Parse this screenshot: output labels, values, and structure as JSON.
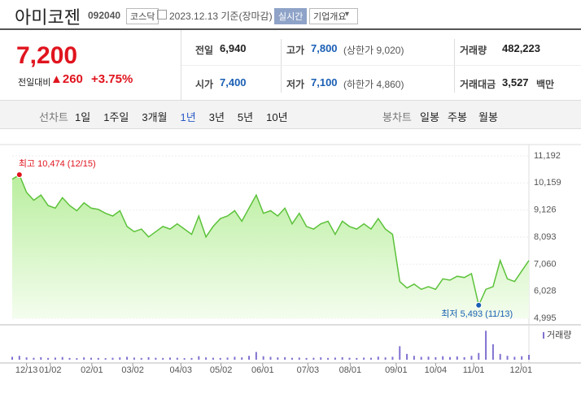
{
  "header": {
    "name": "아미코젠",
    "code": "092040",
    "market": "코스닥",
    "date": "2023.12.13 기준(장마감)",
    "realtime": "실시간",
    "company_info": "기업개요"
  },
  "quote": {
    "price": "7,200",
    "change_label": "전일대비",
    "change": "▲260",
    "change_pct": "+3.75%"
  },
  "stats": [
    {
      "label": "전일",
      "value": "6,940"
    },
    {
      "label": "고가",
      "value": "7,800",
      "extra": "(상한가 9,020)"
    },
    {
      "label": "거래량",
      "value": "482,223"
    },
    {
      "label": "시가",
      "value": "7,400"
    },
    {
      "label": "저가",
      "value": "7,100",
      "extra": "(하한가 4,860)"
    },
    {
      "label": "거래대금",
      "value": "3,527",
      "unit": "백만"
    }
  ],
  "line_chart_tabs": {
    "label": "선차트",
    "items": [
      "1일",
      "1주일",
      "3개월",
      "1년",
      "3년",
      "5년",
      "10년"
    ],
    "selected": 3
  },
  "candle_chart_tabs": {
    "label": "봉차트",
    "items": [
      "일봉",
      "주봉",
      "월봉"
    ]
  },
  "chart_data": {
    "type": "line",
    "color": "#5cc23a",
    "values": [
      10300,
      10474,
      9800,
      9500,
      9700,
      9300,
      9200,
      9600,
      9300,
      9100,
      9400,
      9200,
      9150,
      9000,
      8900,
      9100,
      8500,
      8300,
      8400,
      8100,
      8300,
      8500,
      8400,
      8600,
      8400,
      8200,
      8900,
      8100,
      8500,
      8800,
      8900,
      9100,
      8700,
      9200,
      9700,
      9000,
      9100,
      8900,
      9200,
      8600,
      9000,
      8500,
      8400,
      8600,
      8700,
      8200,
      8700,
      8500,
      8400,
      8600,
      8400,
      8800,
      8400,
      8200,
      6400,
      6150,
      6300,
      6100,
      6200,
      6100,
      6500,
      6450,
      6600,
      6550,
      6700,
      5493,
      6100,
      6200,
      7200,
      6500,
      6400,
      6800,
      7200
    ],
    "xlim": [
      0,
      72
    ],
    "xticks": [
      {
        "value": 2,
        "label": "12/13"
      },
      {
        "value": 5.3,
        "label": "01/02"
      },
      {
        "value": 11.1,
        "label": "02/01"
      },
      {
        "value": 16.8,
        "label": "03/02"
      },
      {
        "value": 23.5,
        "label": "04/03"
      },
      {
        "value": 29.1,
        "label": "05/02"
      },
      {
        "value": 34.9,
        "label": "06/01"
      },
      {
        "value": 41.2,
        "label": "07/03"
      },
      {
        "value": 47.1,
        "label": "08/01"
      },
      {
        "value": 53.5,
        "label": "09/01"
      },
      {
        "value": 59,
        "label": "10/04"
      },
      {
        "value": 64.3,
        "label": "11/01"
      },
      {
        "value": 70.9,
        "label": "12/01"
      }
    ],
    "ylim": [
      4995,
      11192
    ],
    "yticks": [
      {
        "value": 11192,
        "label": "11,192"
      },
      {
        "value": 10159,
        "label": "10,159"
      },
      {
        "value": 9126,
        "label": "9,126"
      },
      {
        "value": 8093,
        "label": "8,093"
      },
      {
        "value": 7060,
        "label": "7,060"
      },
      {
        "value": 6028,
        "label": "6,028"
      },
      {
        "value": 4995,
        "label": "4,995"
      }
    ],
    "annotations": [
      {
        "text": "최고 10,474 (12/15)",
        "x": 1,
        "y": 10474,
        "color": "#e0141e"
      },
      {
        "text": "최저 5,493 (11/13)",
        "x": 65,
        "y": 5493,
        "color": "#1a5fb4"
      }
    ],
    "volume": {
      "name": "거래량",
      "color": "#8072d0",
      "ylim": [
        0,
        1600000
      ],
      "values": [
        150000,
        200000,
        120000,
        100000,
        130000,
        90000,
        110000,
        140000,
        90000,
        80000,
        120000,
        100000,
        90000,
        80000,
        100000,
        120000,
        150000,
        110000,
        90000,
        130000,
        100000,
        90000,
        110000,
        100000,
        80000,
        90000,
        180000,
        120000,
        100000,
        90000,
        110000,
        150000,
        120000,
        200000,
        400000,
        180000,
        150000,
        120000,
        130000,
        100000,
        110000,
        90000,
        100000,
        120000,
        90000,
        110000,
        130000,
        100000,
        90000,
        110000,
        100000,
        160000,
        120000,
        150000,
        700000,
        300000,
        200000,
        150000,
        160000,
        130000,
        180000,
        140000,
        170000,
        130000,
        200000,
        350000,
        1500000,
        800000,
        300000,
        200000,
        150000,
        180000,
        250000
      ]
    }
  }
}
